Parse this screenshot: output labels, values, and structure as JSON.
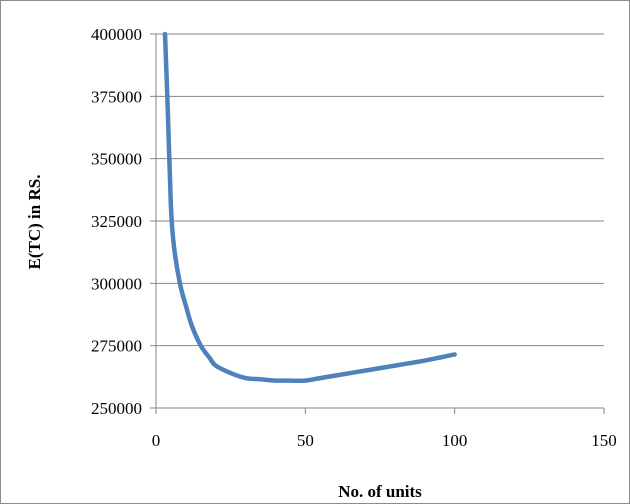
{
  "chart_data": {
    "type": "line",
    "title": "",
    "xlabel": "No. of units",
    "ylabel": "E(TC) in RS.",
    "xlim": [
      0,
      150
    ],
    "ylim": [
      250000,
      400000
    ],
    "x_ticks": [
      0,
      50,
      100,
      150
    ],
    "y_ticks": [
      250000,
      275000,
      300000,
      325000,
      350000,
      375000,
      400000
    ],
    "x_tick_labels": [
      "0",
      "50",
      "100",
      "150"
    ],
    "y_tick_labels": [
      "250000",
      "275000",
      "300000",
      "325000",
      "350000",
      "375000",
      "400000"
    ],
    "grid": {
      "horizontal": true,
      "vertical": false
    },
    "legend": "none",
    "series": [
      {
        "color": "#4f81bd",
        "x": [
          3,
          4,
          5,
          6,
          8,
          10,
          12,
          15,
          18,
          20,
          25,
          30,
          35,
          40,
          45,
          50,
          55,
          60,
          70,
          80,
          90,
          100
        ],
        "y": [
          400000,
          368000,
          331000,
          315000,
          300000,
          291000,
          283000,
          275000,
          270000,
          267000,
          264000,
          262000,
          261500,
          261000,
          261000,
          261000,
          262000,
          263000,
          265000,
          267000,
          269000,
          271500
        ]
      }
    ]
  }
}
